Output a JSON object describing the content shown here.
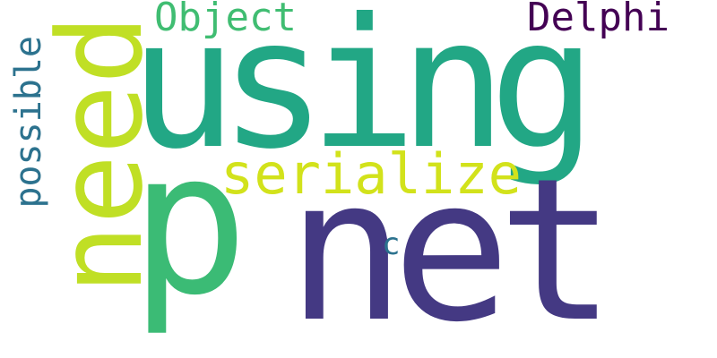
{
  "words": {
    "using": {
      "text": "using",
      "color": "#22a785"
    },
    "net": {
      "text": "net",
      "color": "#443983"
    },
    "p": {
      "text": "p",
      "color": "#3bbb75"
    },
    "need": {
      "text": "need",
      "color": "#c0df25"
    },
    "serialize": {
      "text": "serialize",
      "color": "#d2e21b"
    },
    "object": {
      "text": "Object",
      "color": "#40bd72"
    },
    "delphi": {
      "text": "Delphi",
      "color": "#440154"
    },
    "possible": {
      "text": "possible",
      "color": "#2c728e"
    },
    "c": {
      "text": "c",
      "color": "#2c728e"
    }
  }
}
